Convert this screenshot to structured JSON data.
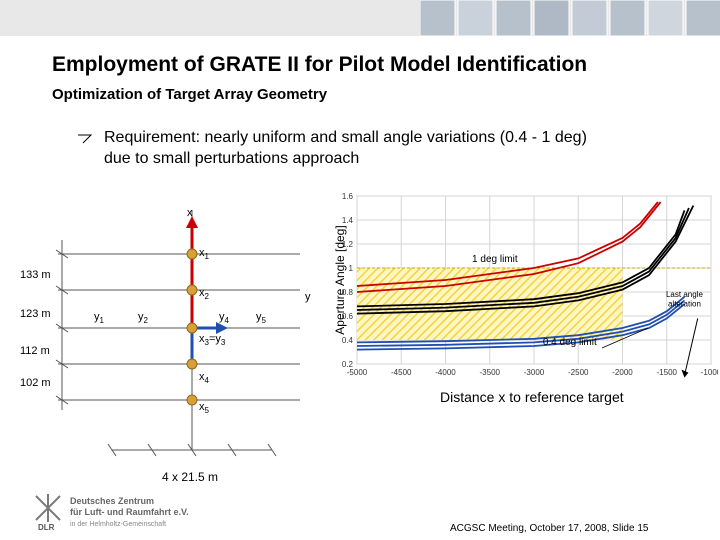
{
  "slide": {
    "title": "Employment of GRATE II for Pilot Model Identification",
    "subtitle": "Optimization of Target Array Geometry",
    "requirement_line1": "Requirement: nearly uniform and small angle variations (0.4 - 1 deg)",
    "requirement_line2": "due to small perturbations approach",
    "footer": "ACGSC Meeting, October 17, 2008, Slide 15"
  },
  "diagram": {
    "axis_x_label": "x",
    "axis_y_label": "y",
    "x_labels": [
      "x",
      "x",
      "x",
      "x"
    ],
    "x_subs": [
      "1",
      "2",
      "4",
      "5"
    ],
    "x3y3_main": "x",
    "x3y3_sub1": "3",
    "x3y3_eq": "=y",
    "x3y3_sub2": "3",
    "y_labels": [
      "y",
      "y",
      "y",
      "y"
    ],
    "y_subs": [
      "1",
      "2",
      "4",
      "5"
    ],
    "distances": [
      "133 m",
      "123 m",
      "112 m",
      "102 m"
    ],
    "spacing_label": "4 x 21.5 m",
    "colors": {
      "target": "#d8a037",
      "axis_red": "#cc0000",
      "axis_blue": "#1f4fb0"
    }
  },
  "logo": {
    "name": "DLR",
    "line1": "Deutsches Zentrum",
    "line2": "für Luft- und Raumfahrt e.V.",
    "line3": "in der Helmholtz-Gemeinschaft"
  },
  "chart_data": {
    "type": "line",
    "xlabel": "Distance x to reference target",
    "ylabel": "Aperture Angle [deg]",
    "xlim": [
      -5000,
      -1000
    ],
    "ylim": [
      0.2,
      1.6
    ],
    "xticks": [
      "-5000",
      "-4500",
      "-4000",
      "-3500",
      "-3000",
      "-2500",
      "-2000",
      "-1500",
      "-1000"
    ],
    "yticks": [
      "0.2",
      "0.4",
      "0.6",
      "0.8",
      "1",
      "1.2",
      "1.4",
      "1.6"
    ],
    "grid": true,
    "feasible_band": [
      0.4,
      1.0
    ],
    "annotations": {
      "upper": "1 deg limit",
      "lower": "0.4 deg limit",
      "last_line1": "Last angle",
      "last_line2": "alteration"
    },
    "colors": {
      "red": "#cc0000",
      "black": "#000000",
      "blue": "#1f4fb0",
      "band": "#f2d53a"
    },
    "series": [
      {
        "color": "red",
        "x": [
          -5000,
          -4000,
          -3000,
          -2500,
          -2000,
          -1800,
          -1600
        ],
        "y": [
          0.85,
          0.9,
          1.0,
          1.08,
          1.25,
          1.37,
          1.55
        ]
      },
      {
        "color": "red",
        "x": [
          -5000,
          -4000,
          -3000,
          -2500,
          -2000,
          -1800,
          -1570
        ],
        "y": [
          0.8,
          0.85,
          0.95,
          1.04,
          1.22,
          1.34,
          1.55
        ]
      },
      {
        "color": "black",
        "x": [
          -5000,
          -4000,
          -3000,
          -2500,
          -2000,
          -1700,
          -1400,
          -1300
        ],
        "y": [
          0.68,
          0.7,
          0.74,
          0.79,
          0.88,
          1.0,
          1.28,
          1.48
        ]
      },
      {
        "color": "black",
        "x": [
          -5000,
          -4000,
          -3000,
          -2500,
          -2000,
          -1700,
          -1400,
          -1250
        ],
        "y": [
          0.65,
          0.67,
          0.71,
          0.76,
          0.85,
          0.97,
          1.25,
          1.5
        ]
      },
      {
        "color": "black",
        "x": [
          -5000,
          -4000,
          -3000,
          -2500,
          -2000,
          -1700,
          -1400,
          -1200
        ],
        "y": [
          0.62,
          0.64,
          0.68,
          0.73,
          0.82,
          0.94,
          1.22,
          1.52
        ]
      },
      {
        "color": "blue",
        "x": [
          -5000,
          -4000,
          -3000,
          -2500,
          -2000,
          -1700,
          -1500,
          -1300
        ],
        "y": [
          0.38,
          0.39,
          0.41,
          0.44,
          0.5,
          0.56,
          0.64,
          0.76
        ]
      },
      {
        "color": "blue",
        "x": [
          -5000,
          -4000,
          -3000,
          -2500,
          -2000,
          -1700,
          -1500,
          -1300
        ],
        "y": [
          0.35,
          0.36,
          0.38,
          0.41,
          0.47,
          0.53,
          0.61,
          0.73
        ]
      },
      {
        "color": "blue",
        "x": [
          -5000,
          -4000,
          -3000,
          -2500,
          -2000,
          -1700,
          -1500,
          -1300
        ],
        "y": [
          0.32,
          0.33,
          0.35,
          0.38,
          0.44,
          0.5,
          0.58,
          0.7
        ]
      }
    ]
  }
}
